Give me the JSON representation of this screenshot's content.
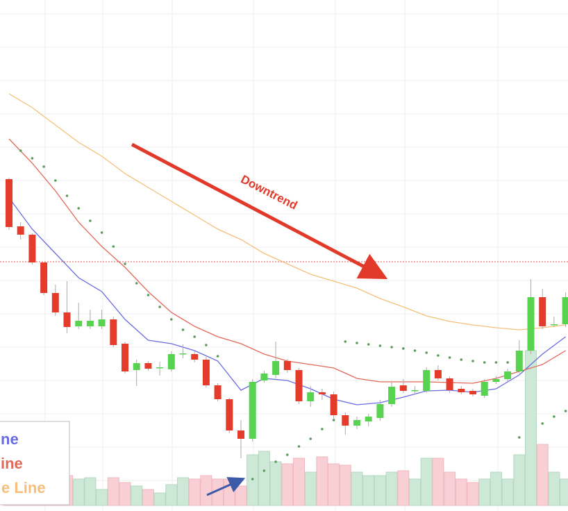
{
  "chart_data": {
    "type": "candlestick",
    "annotation": "Downtrend",
    "ylim": [
      0,
      736
    ],
    "y2lim": [
      0,
      300
    ],
    "hline": 359,
    "candles": {
      "up_color": "#57d34f",
      "down_color": "#e43b2b",
      "open": [
        478,
        410,
        398,
        358,
        314,
        286,
        266,
        266,
        266,
        276,
        241,
        203,
        213,
        206,
        204,
        226,
        226,
        218,
        181,
        161,
        116,
        104,
        188,
        196,
        216,
        203,
        158,
        171,
        168,
        138,
        123,
        129,
        134,
        154,
        181,
        173,
        173,
        203,
        191,
        176,
        173,
        166,
        186,
        190,
        201,
        231,
        308,
        268,
        269
      ],
      "high": [
        480,
        416,
        400,
        358,
        326,
        331,
        300,
        290,
        290,
        280,
        244,
        218,
        216,
        215,
        230,
        240,
        230,
        222,
        184,
        163,
        131,
        190,
        202,
        244,
        219,
        206,
        180,
        176,
        172,
        142,
        136,
        140,
        160,
        185,
        190,
        180,
        207,
        210,
        194,
        180,
        176,
        190,
        194,
        205,
        246,
        334,
        320,
        280,
        315
      ],
      "low": [
        405,
        391,
        355,
        311,
        281,
        256,
        262,
        262,
        262,
        236,
        198,
        180,
        202,
        195,
        201,
        220,
        214,
        178,
        158,
        112,
        76,
        100,
        185,
        191,
        199,
        154,
        150,
        160,
        132,
        110,
        118,
        122,
        130,
        150,
        170,
        170,
        170,
        188,
        170,
        168,
        165,
        163,
        183,
        186,
        198,
        226,
        262,
        265,
        265
      ],
      "close": [
        409,
        398,
        358,
        314,
        286,
        265,
        274,
        274,
        276,
        239,
        201,
        213,
        205,
        207,
        226,
        227,
        218,
        181,
        161,
        116,
        104,
        186,
        198,
        216,
        203,
        158,
        171,
        168,
        138,
        123,
        131,
        136,
        154,
        179,
        173,
        174,
        203,
        191,
        174,
        171,
        168,
        186,
        190,
        201,
        231,
        308,
        266,
        269,
        308
      ]
    },
    "volume": {
      "up_color": "#cde8d6",
      "down_color": "#f7cfd4",
      "axis": "y2",
      "values": [
        28,
        23,
        28,
        38,
        28,
        43,
        38,
        40,
        23,
        40,
        33,
        28,
        23,
        18,
        30,
        40,
        38,
        43,
        38,
        38,
        28,
        73,
        78,
        63,
        60,
        68,
        48,
        70,
        60,
        58,
        48,
        43,
        43,
        48,
        50,
        38,
        68,
        68,
        48,
        38,
        33,
        38,
        48,
        38,
        73,
        223,
        88,
        48,
        38
      ]
    },
    "series": [
      {
        "name": "ne",
        "color": "#6b6be0",
        "values": [
          451,
          406,
          371,
          336,
          316,
          276,
          246,
          241,
          231,
          216,
          174,
          191,
          188,
          176,
          161,
          153,
          156,
          164,
          173,
          174,
          171,
          176,
          196,
          226,
          251
        ]
      },
      {
        "name": "ine",
        "color": "#e0695a",
        "values": [
          536,
          501,
          461,
          416,
          381,
          351,
          316,
          286,
          266,
          251,
          241,
          226,
          216,
          211,
          206,
          191,
          186,
          186,
          186,
          185,
          184,
          191,
          201,
          211,
          231
        ]
      },
      {
        "name": "e Line",
        "color": "#f5bf7a",
        "values": [
          601,
          581,
          556,
          531,
          511,
          486,
          466,
          446,
          426,
          406,
          391,
          371,
          356,
          341,
          331,
          321,
          306,
          294,
          281,
          273,
          268,
          264,
          261,
          264,
          268
        ]
      }
    ],
    "psar": {
      "color": "#5c9a5c",
      "values": [
        null,
        519,
        508,
        496,
        476,
        454,
        436,
        418,
        401,
        381,
        356,
        328,
        311,
        294,
        276,
        261,
        251,
        239,
        223,
        null,
        null,
        46,
        58,
        71,
        81,
        93,
        104,
        118,
        131,
        244,
        242,
        240,
        238,
        236,
        234,
        231,
        228,
        224,
        221,
        218,
        216,
        214,
        214,
        214,
        106,
        null,
        126,
        136,
        144
      ]
    }
  }
}
